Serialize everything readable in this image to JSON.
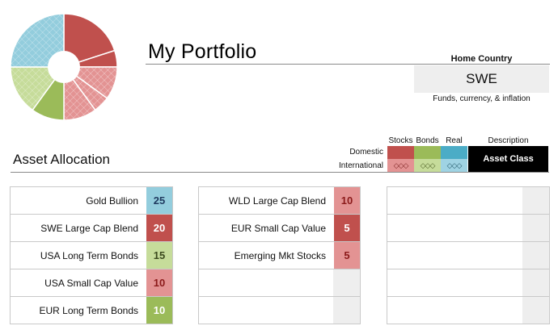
{
  "header": {
    "title": "My Portfolio",
    "home_country_label": "Home Country",
    "home_country_value": "SWE",
    "home_country_sub": "Funds, currency, & inflation"
  },
  "allocation": {
    "title": "Asset Allocation"
  },
  "legend": {
    "col_stocks": "Stocks",
    "col_bonds": "Bonds",
    "col_real": "Real",
    "col_description": "Description",
    "row_domestic": "Domestic",
    "row_international": "International",
    "asset_class_label": "Asset Class",
    "int_marker": "◇◇◇",
    "colors": {
      "stocks_domestic": "#c0504d",
      "stocks_international": "#e39393",
      "bonds_domestic": "#9bbb59",
      "bonds_international": "#c6dc9a",
      "real_domestic": "#4bacc6",
      "real_international": "#9fd3e3"
    }
  },
  "pie": {
    "slices": [
      {
        "name": "SWE Large Cap Blend",
        "value": 20,
        "color": "#c0504d"
      },
      {
        "name": "EUR Small Cap Value",
        "value": 5,
        "color": "#c0504d"
      },
      {
        "name": "WLD Large Cap Blend",
        "value": 10,
        "color": "#e39393"
      },
      {
        "name": "Emerging Mkt Stocks",
        "value": 5,
        "color": "#e39393"
      },
      {
        "name": "USA Small Cap Value",
        "value": 10,
        "color": "#e39393"
      },
      {
        "name": "EUR Long Term Bonds",
        "value": 10,
        "color": "#9bbb59"
      },
      {
        "name": "USA Long Term Bonds",
        "value": 15,
        "color": "#c6dc9a"
      },
      {
        "name": "Gold Bullion",
        "value": 25,
        "color": "#93cddd"
      }
    ]
  },
  "tables": [
    {
      "rows": [
        {
          "name": "Gold Bullion",
          "value": "25",
          "bg": "#93cddd",
          "fg": "#1f3a5f"
        },
        {
          "name": "SWE Large Cap Blend",
          "value": "20",
          "bg": "#c0504d",
          "fg": "#ffffff"
        },
        {
          "name": "USA Long Term Bonds",
          "value": "15",
          "bg": "#c6dc9a",
          "fg": "#3c4a1e"
        },
        {
          "name": "USA Small Cap Value",
          "value": "10",
          "bg": "#e39393",
          "fg": "#8b1a1a"
        },
        {
          "name": "EUR Long Term Bonds",
          "value": "10",
          "bg": "#9bbb59",
          "fg": "#ffffff"
        }
      ]
    },
    {
      "rows": [
        {
          "name": "WLD Large Cap Blend",
          "value": "10",
          "bg": "#e39393",
          "fg": "#8b1a1a"
        },
        {
          "name": "EUR Small Cap Value",
          "value": "5",
          "bg": "#c0504d",
          "fg": "#ffffff"
        },
        {
          "name": "Emerging Mkt Stocks",
          "value": "5",
          "bg": "#e39393",
          "fg": "#8b1a1a"
        },
        {
          "name": "",
          "value": "",
          "bg": "",
          "fg": ""
        },
        {
          "name": "",
          "value": "",
          "bg": "",
          "fg": ""
        }
      ]
    },
    {
      "rows": [
        {
          "name": "",
          "value": "",
          "bg": "",
          "fg": ""
        },
        {
          "name": "",
          "value": "",
          "bg": "",
          "fg": ""
        },
        {
          "name": "",
          "value": "",
          "bg": "",
          "fg": ""
        },
        {
          "name": "",
          "value": "",
          "bg": "",
          "fg": ""
        },
        {
          "name": "",
          "value": "",
          "bg": "",
          "fg": ""
        }
      ]
    }
  ]
}
